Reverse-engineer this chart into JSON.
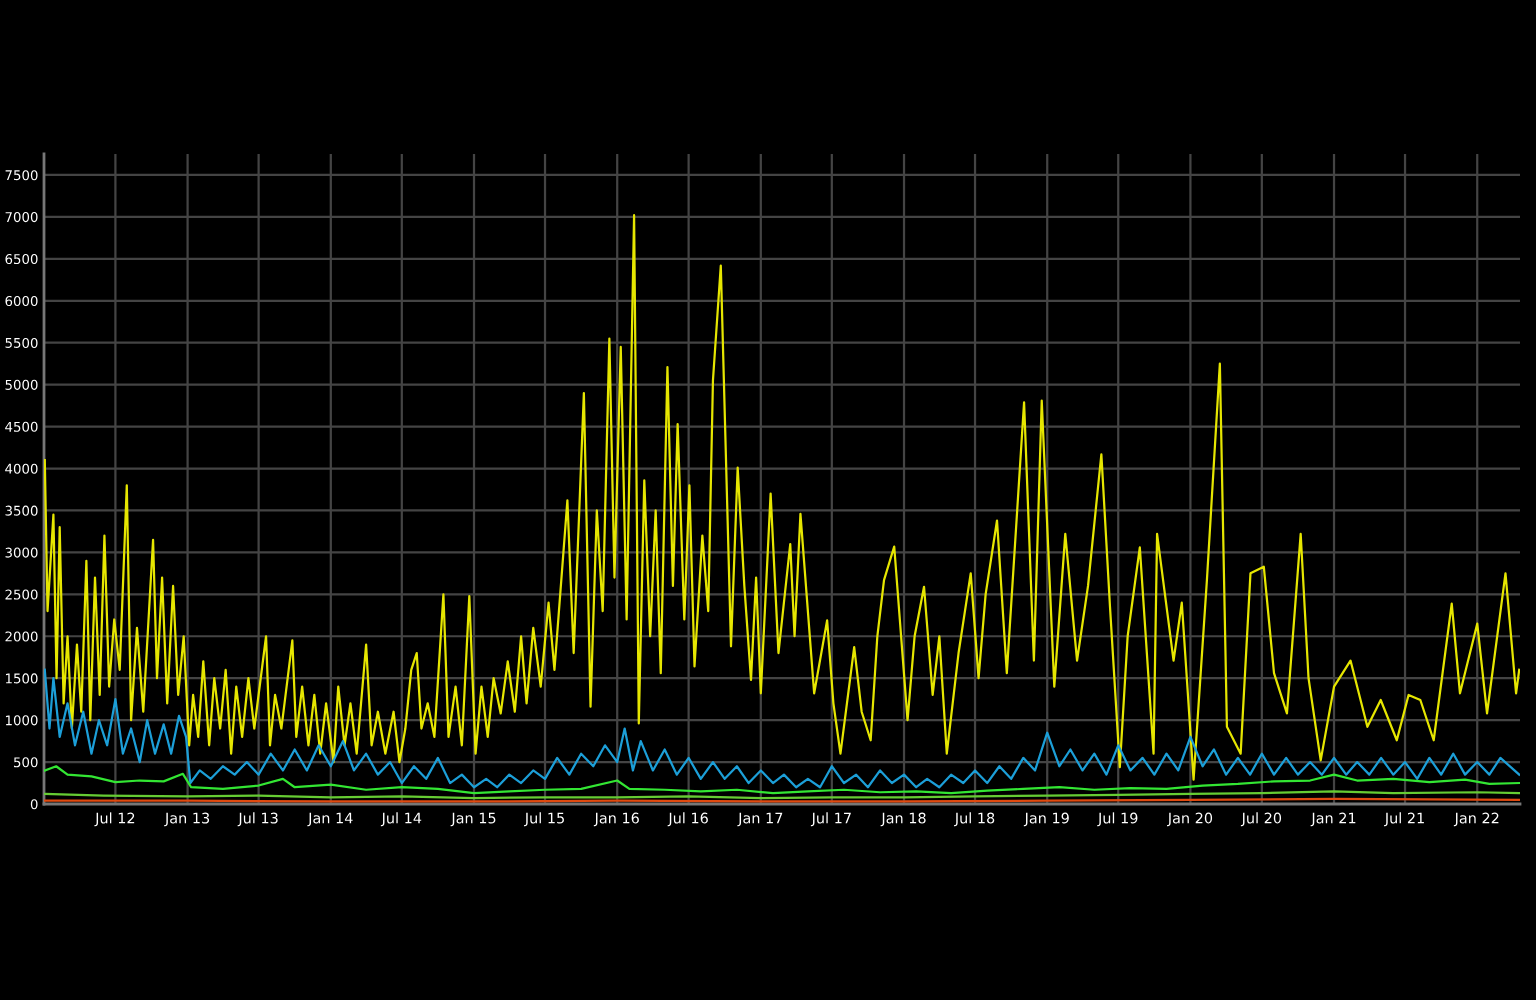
{
  "chart_data": {
    "type": "line",
    "series": [
      {
        "color": "#e6e600",
        "x": [
          "2012-01-03",
          "2012-01-10",
          "2012-01-25",
          "2012-02-02",
          "2012-02-10",
          "2012-02-20",
          "2012-03-01",
          "2012-03-12",
          "2012-03-25",
          "2012-04-05",
          "2012-04-18",
          "2012-04-28",
          "2012-05-10",
          "2012-05-22",
          "2012-06-03",
          "2012-06-15",
          "2012-06-28",
          "2012-07-12",
          "2012-07-30",
          "2012-08-10",
          "2012-08-25",
          "2012-09-10",
          "2012-10-05",
          "2012-10-15",
          "2012-10-28",
          "2012-11-10",
          "2012-11-25",
          "2012-12-08",
          "2012-12-22",
          "2013-01-05",
          "2013-01-15",
          "2013-01-28",
          "2013-02-10",
          "2013-02-25",
          "2013-03-10",
          "2013-03-25",
          "2013-04-08",
          "2013-04-22",
          "2013-05-05",
          "2013-05-20",
          "2013-06-05",
          "2013-06-20",
          "2013-07-20",
          "2013-07-30",
          "2013-08-12",
          "2013-08-28",
          "2013-09-25",
          "2013-10-05",
          "2013-10-20",
          "2013-11-05",
          "2013-11-20",
          "2013-12-05",
          "2013-12-20",
          "2014-01-08",
          "2014-01-20",
          "2014-02-05",
          "2014-02-20",
          "2014-03-08",
          "2014-04-01",
          "2014-04-15",
          "2014-05-01",
          "2014-05-20",
          "2014-06-10",
          "2014-06-25",
          "2014-07-10",
          "2014-07-25",
          "2014-08-08",
          "2014-08-20",
          "2014-09-05",
          "2014-09-22",
          "2014-10-15",
          "2014-10-28",
          "2014-11-15",
          "2014-12-01",
          "2014-12-20",
          "2015-01-05",
          "2015-01-20",
          "2015-02-05",
          "2015-02-20",
          "2015-03-10",
          "2015-03-28",
          "2015-04-15",
          "2015-05-01",
          "2015-05-15",
          "2015-06-01",
          "2015-06-20",
          "2015-07-10",
          "2015-07-25",
          "2015-08-27",
          "2015-09-12",
          "2015-10-08",
          "2015-10-25",
          "2015-11-10",
          "2015-11-25",
          "2015-12-12",
          "2015-12-25",
          "2016-01-10",
          "2016-01-25",
          "2016-02-13",
          "2016-02-25",
          "2016-03-10",
          "2016-03-25",
          "2016-04-08",
          "2016-04-21",
          "2016-05-08",
          "2016-05-22",
          "2016-06-03",
          "2016-06-20",
          "2016-07-03",
          "2016-07-16",
          "2016-08-05",
          "2016-08-20",
          "2016-09-01",
          "2016-09-21",
          "2016-10-17",
          "2016-11-03",
          "2016-11-20",
          "2016-12-07",
          "2016-12-20",
          "2017-01-01",
          "2017-01-26",
          "2017-02-15",
          "2017-03-17",
          "2017-03-28",
          "2017-04-12",
          "2017-05-17",
          "2017-06-19",
          "2017-07-05",
          "2017-07-23",
          "2017-08-27",
          "2017-09-15",
          "2017-10-08",
          "2017-10-25",
          "2017-11-11",
          "2017-12-07",
          "2018-01-10",
          "2018-01-28",
          "2018-02-21",
          "2018-03-15",
          "2018-04-01",
          "2018-04-20",
          "2018-05-20",
          "2018-06-20",
          "2018-07-10",
          "2018-07-28",
          "2018-08-26",
          "2018-09-20",
          "2018-10-25",
          "2018-11-03",
          "2018-11-28",
          "2018-12-18",
          "2019-01-19",
          "2019-02-16",
          "2019-03-18",
          "2019-04-15",
          "2019-05-19",
          "2019-06-10",
          "2019-07-05",
          "2019-07-25",
          "2019-08-25",
          "2019-09-29",
          "2019-10-08",
          "2019-11-19",
          "2019-12-10",
          "2020-01-09",
          "2020-02-12",
          "2020-03-16",
          "2020-04-03",
          "2020-05-08",
          "2020-06-02",
          "2020-07-06",
          "2020-08-01",
          "2020-09-03",
          "2020-10-08",
          "2020-10-28",
          "2020-11-28",
          "2021-01-01",
          "2021-02-12",
          "2021-03-27",
          "2021-04-30",
          "2021-06-10",
          "2021-07-10",
          "2021-08-09",
          "2021-09-12",
          "2021-10-28",
          "2021-11-18",
          "2022-01-01",
          "2022-01-26",
          "2022-03-14",
          "2022-04-10",
          "2022-04-18"
        ],
        "values": [
          4100,
          2300,
          3450,
          1500,
          3300,
          1200,
          2000,
          900,
          1900,
          1100,
          2900,
          1000,
          2700,
          1300,
          3200,
          1400,
          2200,
          1600,
          3800,
          1000,
          2100,
          1100,
          3150,
          1500,
          2700,
          1200,
          2600,
          1300,
          2000,
          700,
          1300,
          800,
          1700,
          700,
          1500,
          900,
          1600,
          600,
          1400,
          800,
          1500,
          900,
          2000,
          700,
          1300,
          900,
          1950,
          800,
          1400,
          700,
          1300,
          600,
          1200,
          500,
          1400,
          700,
          1200,
          600,
          1900,
          700,
          1100,
          600,
          1100,
          500,
          900,
          1600,
          1800,
          900,
          1200,
          800,
          2500,
          800,
          1400,
          700,
          2480,
          600,
          1400,
          800,
          1500,
          1080,
          1700,
          1100,
          2000,
          1200,
          2100,
          1400,
          2400,
          1600,
          3620,
          1800,
          4900,
          1160,
          3500,
          2300,
          5550,
          2700,
          5450,
          2200,
          7020,
          960,
          3860,
          2000,
          3500,
          1560,
          5210,
          2600,
          4530,
          2200,
          3800,
          1640,
          3200,
          2300,
          5050,
          6420,
          1880,
          4010,
          2600,
          1480,
          2700,
          1320,
          3700,
          1800,
          3100,
          2000,
          3460,
          1320,
          2190,
          1200,
          600,
          1870,
          1100,
          760,
          2000,
          2670,
          3070,
          1000,
          2000,
          2590,
          1300,
          2000,
          600,
          1800,
          2750,
          1500,
          2500,
          3380,
          1560,
          4130,
          4790,
          1710,
          4810,
          1400,
          3220,
          1710,
          2600,
          4170,
          2350,
          440,
          2000,
          3060,
          600,
          3220,
          1710,
          2400,
          290,
          2670,
          5250,
          920,
          600,
          2750,
          2830,
          1560,
          1080,
          3220,
          1500,
          520,
          1400,
          1710,
          920,
          1240,
          760,
          1300,
          1240,
          760,
          2390,
          1320,
          2150,
          1080,
          2750,
          1320,
          1600
        ]
      },
      {
        "color": "#1c9fd8",
        "x": [
          "2012-01-03",
          "2012-01-15",
          "2012-01-25",
          "2012-02-10",
          "2012-03-01",
          "2012-03-20",
          "2012-04-10",
          "2012-05-01",
          "2012-05-20",
          "2012-06-10",
          "2012-07-01",
          "2012-07-20",
          "2012-08-10",
          "2012-09-01",
          "2012-09-20",
          "2012-10-10",
          "2012-11-01",
          "2012-11-20",
          "2012-12-10",
          "2012-12-28",
          "2013-01-08",
          "2013-02-01",
          "2013-03-01",
          "2013-04-01",
          "2013-05-01",
          "2013-06-01",
          "2013-07-01",
          "2013-08-01",
          "2013-09-01",
          "2013-10-01",
          "2013-11-01",
          "2013-12-01",
          "2014-01-01",
          "2014-02-01",
          "2014-03-01",
          "2014-04-01",
          "2014-05-01",
          "2014-06-01",
          "2014-07-01",
          "2014-08-01",
          "2014-09-01",
          "2014-10-01",
          "2014-11-01",
          "2014-12-01",
          "2015-01-01",
          "2015-02-01",
          "2015-03-01",
          "2015-04-01",
          "2015-05-01",
          "2015-06-01",
          "2015-07-01",
          "2015-08-01",
          "2015-09-01",
          "2015-10-01",
          "2015-11-01",
          "2015-12-01",
          "2016-01-01",
          "2016-01-20",
          "2016-02-10",
          "2016-03-01",
          "2016-04-01",
          "2016-05-01",
          "2016-06-01",
          "2016-07-01",
          "2016-08-01",
          "2016-09-01",
          "2016-10-01",
          "2016-11-01",
          "2016-12-01",
          "2017-01-01",
          "2017-02-01",
          "2017-03-01",
          "2017-04-01",
          "2017-05-01",
          "2017-06-01",
          "2017-07-01",
          "2017-08-01",
          "2017-09-01",
          "2017-10-01",
          "2017-11-01",
          "2017-12-01",
          "2018-01-01",
          "2018-02-01",
          "2018-03-01",
          "2018-04-01",
          "2018-05-01",
          "2018-06-01",
          "2018-07-01",
          "2018-08-01",
          "2018-09-01",
          "2018-10-01",
          "2018-11-01",
          "2018-12-01",
          "2019-01-01",
          "2019-02-01",
          "2019-03-01",
          "2019-04-01",
          "2019-05-01",
          "2019-06-01",
          "2019-07-01",
          "2019-08-01",
          "2019-09-01",
          "2019-10-01",
          "2019-11-01",
          "2019-12-01",
          "2020-01-01",
          "2020-02-01",
          "2020-03-01",
          "2020-04-01",
          "2020-05-01",
          "2020-06-01",
          "2020-07-01",
          "2020-08-01",
          "2020-09-01",
          "2020-10-01",
          "2020-11-01",
          "2020-12-01",
          "2021-01-01",
          "2021-02-01",
          "2021-03-01",
          "2021-04-01",
          "2021-05-01",
          "2021-06-01",
          "2021-07-01",
          "2021-08-01",
          "2021-09-01",
          "2021-10-01",
          "2021-11-01",
          "2021-12-01",
          "2022-01-01",
          "2022-02-01",
          "2022-03-01",
          "2022-04-18"
        ],
        "values": [
          1600,
          900,
          1500,
          800,
          1200,
          700,
          1100,
          600,
          1000,
          700,
          1250,
          600,
          900,
          500,
          1000,
          600,
          950,
          600,
          1050,
          800,
          250,
          400,
          300,
          450,
          350,
          500,
          350,
          600,
          400,
          650,
          400,
          700,
          450,
          750,
          400,
          600,
          350,
          500,
          250,
          450,
          300,
          550,
          250,
          350,
          200,
          300,
          200,
          350,
          250,
          400,
          300,
          550,
          350,
          600,
          450,
          700,
          500,
          900,
          400,
          750,
          400,
          650,
          350,
          550,
          300,
          500,
          300,
          450,
          250,
          400,
          250,
          350,
          200,
          300,
          200,
          450,
          250,
          350,
          200,
          400,
          250,
          350,
          200,
          300,
          200,
          350,
          250,
          400,
          250,
          450,
          300,
          550,
          400,
          850,
          450,
          650,
          400,
          600,
          350,
          700,
          400,
          550,
          350,
          600,
          400,
          800,
          450,
          650,
          350,
          550,
          350,
          600,
          350,
          550,
          350,
          500,
          350,
          550,
          350,
          500,
          350,
          550,
          350,
          500,
          300,
          550,
          350,
          600,
          350,
          500,
          350,
          550,
          350
        ]
      },
      {
        "color": "#33e633",
        "x": [
          "2012-01-03",
          "2012-02-01",
          "2012-03-01",
          "2012-05-01",
          "2012-07-01",
          "2012-09-01",
          "2012-11-01",
          "2012-12-20",
          "2013-01-10",
          "2013-04-01",
          "2013-07-01",
          "2013-09-01",
          "2013-10-01",
          "2014-01-01",
          "2014-04-01",
          "2014-07-01",
          "2014-10-01",
          "2015-01-01",
          "2015-04-01",
          "2015-07-01",
          "2015-10-01",
          "2016-01-01",
          "2016-02-01",
          "2016-05-01",
          "2016-08-01",
          "2016-11-01",
          "2017-02-01",
          "2017-05-01",
          "2017-08-01",
          "2017-11-01",
          "2018-02-01",
          "2018-05-01",
          "2018-08-01",
          "2018-11-01",
          "2019-02-01",
          "2019-05-01",
          "2019-08-01",
          "2019-11-01",
          "2020-02-01",
          "2020-05-01",
          "2020-08-01",
          "2020-11-01",
          "2021-01-01",
          "2021-03-01",
          "2021-06-01",
          "2021-09-01",
          "2021-12-01",
          "2022-02-01",
          "2022-04-18"
        ],
        "values": [
          400,
          450,
          350,
          330,
          260,
          280,
          270,
          360,
          200,
          180,
          220,
          300,
          200,
          230,
          170,
          200,
          180,
          130,
          150,
          170,
          180,
          280,
          180,
          170,
          150,
          170,
          130,
          150,
          170,
          140,
          150,
          130,
          160,
          180,
          200,
          170,
          190,
          180,
          220,
          240,
          270,
          280,
          350,
          280,
          300,
          260,
          290,
          240,
          250
        ]
      },
      {
        "color": "#66cc33",
        "x": [
          "2012-01-03",
          "2012-06-01",
          "2013-01-01",
          "2013-07-01",
          "2014-01-01",
          "2014-07-01",
          "2015-01-01",
          "2015-07-01",
          "2016-01-01",
          "2016-07-01",
          "2017-01-01",
          "2017-07-01",
          "2018-01-01",
          "2018-07-01",
          "2019-01-01",
          "2019-07-01",
          "2020-01-01",
          "2020-07-01",
          "2021-01-01",
          "2021-06-01",
          "2022-01-01",
          "2022-04-18"
        ],
        "values": [
          120,
          100,
          90,
          100,
          80,
          90,
          70,
          80,
          80,
          90,
          70,
          80,
          80,
          90,
          100,
          110,
          120,
          130,
          150,
          130,
          140,
          130
        ]
      },
      {
        "color": "#e04a10",
        "x": [
          "2012-01-03",
          "2013-01-01",
          "2014-01-01",
          "2015-01-01",
          "2016-01-01",
          "2017-01-01",
          "2018-01-01",
          "2019-01-01",
          "2020-01-01",
          "2021-01-01",
          "2022-04-18"
        ],
        "values": [
          40,
          40,
          30,
          30,
          40,
          30,
          30,
          40,
          50,
          60,
          50
        ]
      }
    ],
    "xlim": [
      "2012-01-01",
      "2022-04-20"
    ],
    "xticks": [
      {
        "value": "2012-07-01",
        "label": "Jul 12"
      },
      {
        "value": "2013-01-01",
        "label": "Jan 13"
      },
      {
        "value": "2013-07-01",
        "label": "Jul 13"
      },
      {
        "value": "2014-01-01",
        "label": "Jan 14"
      },
      {
        "value": "2014-07-01",
        "label": "Jul 14"
      },
      {
        "value": "2015-01-01",
        "label": "Jan 15"
      },
      {
        "value": "2015-07-01",
        "label": "Jul 15"
      },
      {
        "value": "2016-01-01",
        "label": "Jan 16"
      },
      {
        "value": "2016-07-01",
        "label": "Jul 16"
      },
      {
        "value": "2017-01-01",
        "label": "Jan 17"
      },
      {
        "value": "2017-07-01",
        "label": "Jul 17"
      },
      {
        "value": "2018-01-01",
        "label": "Jan 18"
      },
      {
        "value": "2018-07-01",
        "label": "Jul 18"
      },
      {
        "value": "2019-01-01",
        "label": "Jan 19"
      },
      {
        "value": "2019-07-01",
        "label": "Jul 19"
      },
      {
        "value": "2020-01-01",
        "label": "Jan 20"
      },
      {
        "value": "2020-07-01",
        "label": "Jul 20"
      },
      {
        "value": "2021-01-01",
        "label": "Jan 21"
      },
      {
        "value": "2021-07-01",
        "label": "Jul 21"
      },
      {
        "value": "2022-01-01",
        "label": "Jan 22"
      }
    ],
    "ylim": [
      0,
      7750
    ],
    "yticks": [
      0,
      500,
      1000,
      1500,
      2000,
      2500,
      3000,
      3500,
      4000,
      4500,
      5000,
      5500,
      6000,
      6500,
      7000,
      7500
    ],
    "grid": true
  }
}
